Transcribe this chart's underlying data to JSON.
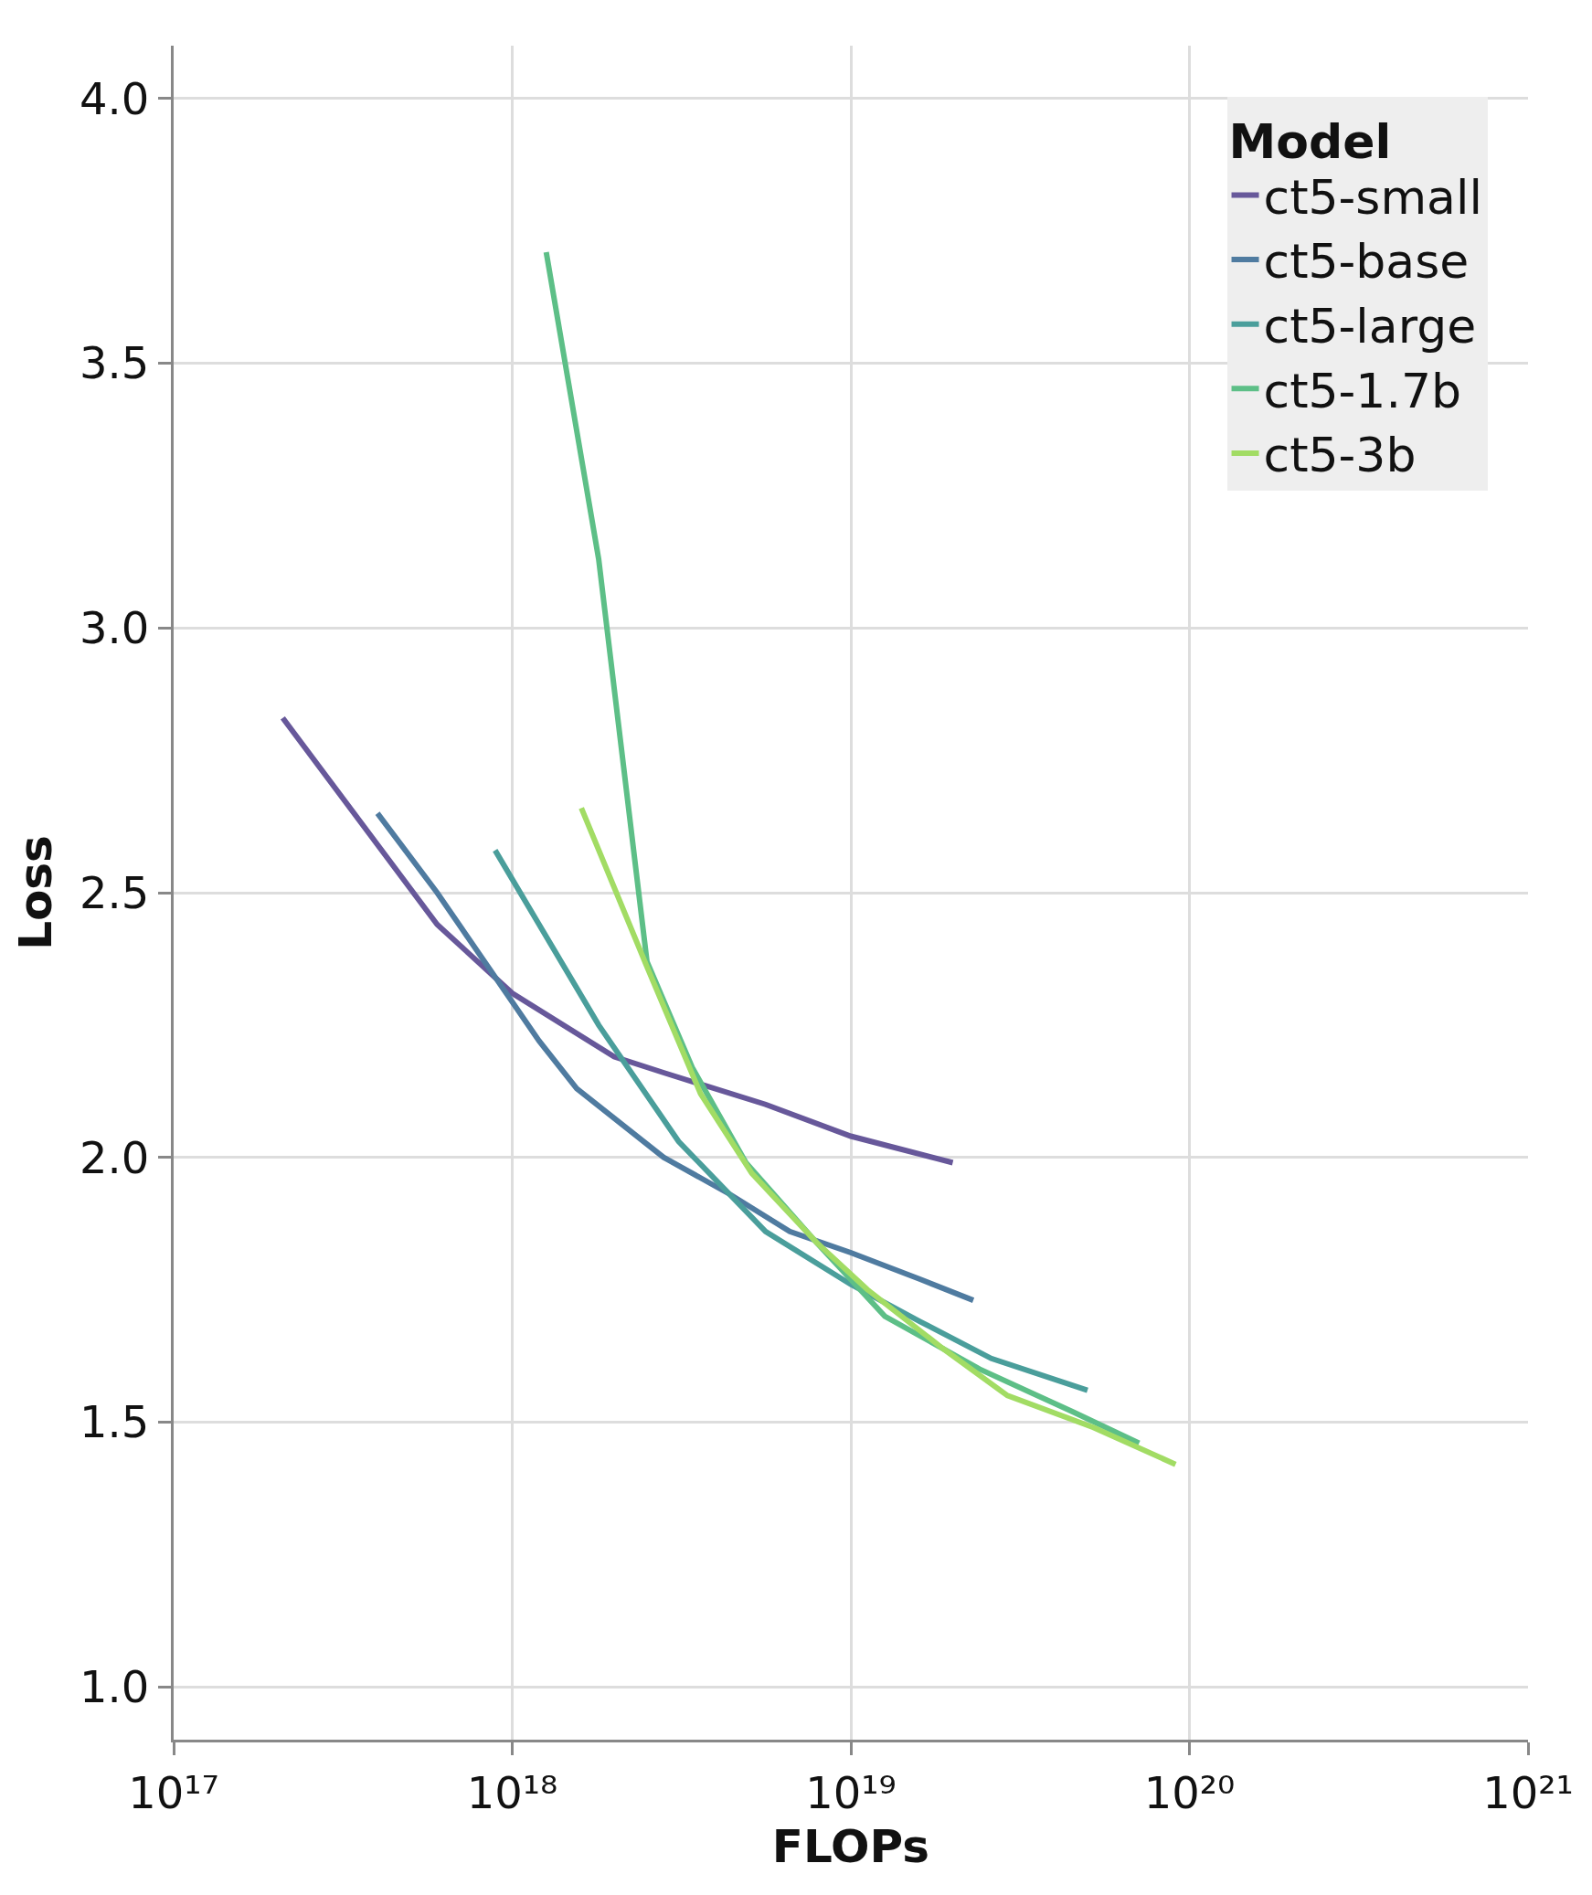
{
  "chart_data": {
    "type": "line",
    "xlabel": "FLOPs",
    "ylabel": "Loss",
    "legend_title": "Model",
    "legend": "top right",
    "grid": true,
    "log": "x",
    "marker": "none",
    "line_style": "solid",
    "xlim": [
      1e+17,
      1e+21
    ],
    "ylim": [
      0.9,
      4.1
    ],
    "xticks": [
      {
        "value": 1e+17,
        "label": "10¹⁷"
      },
      {
        "value": 1e+18,
        "label": "10¹⁸"
      },
      {
        "value": 1e+19,
        "label": "10¹⁹"
      },
      {
        "value": 1e+20,
        "label": "10²⁰"
      },
      {
        "value": 1e+21,
        "label": "10²¹"
      }
    ],
    "yticks": [
      {
        "value": 1,
        "label": "1.0"
      },
      {
        "value": 1.5,
        "label": "1.5"
      },
      {
        "value": 2,
        "label": "2.0"
      },
      {
        "value": 2.5,
        "label": "2.5"
      },
      {
        "value": 3,
        "label": "3.0"
      },
      {
        "value": 3.5,
        "label": "3.5"
      },
      {
        "value": 4,
        "label": "4.0"
      }
    ],
    "series": [
      {
        "name": "ct5-small",
        "color": "#67589a",
        "x": [
          2.1e+17,
          6e+17,
          1e+18,
          2e+18,
          2.8e+18,
          5.6e+18,
          1e+19,
          2e+19
        ],
        "values": [
          2.83,
          2.44,
          2.31,
          2.19,
          2.16,
          2.1,
          2.04,
          1.99
        ]
      },
      {
        "name": "ct5-base",
        "color": "#4f7ba0",
        "x": [
          4e+17,
          6e+17,
          1.2e+18,
          1.55e+18,
          2.8e+18,
          4.4e+18,
          6.6e+18,
          1e+19,
          1.6e+19,
          2.3e+19
        ],
        "values": [
          2.65,
          2.5,
          2.22,
          2.13,
          2.0,
          1.93,
          1.86,
          1.82,
          1.77,
          1.73
        ]
      },
      {
        "name": "ct5-large",
        "color": "#4a9e9b",
        "x": [
          8.9e+17,
          1.2e+18,
          1.8e+18,
          3.1e+18,
          5.6e+18,
          1e+19,
          1.6e+19,
          2.6e+19,
          5e+19
        ],
        "values": [
          2.58,
          2.44,
          2.25,
          2.03,
          1.86,
          1.76,
          1.69,
          1.62,
          1.56
        ]
      },
      {
        "name": "ct5-1.7b",
        "color": "#5dbf87",
        "x": [
          1.26e+18,
          1.8e+18,
          2.5e+18,
          3.4e+18,
          4.9e+18,
          7.9e+18,
          1.26e+19,
          2.4e+19,
          4.5e+19,
          7.1e+19
        ],
        "values": [
          3.71,
          3.13,
          2.37,
          2.17,
          1.99,
          1.84,
          1.7,
          1.6,
          1.52,
          1.46
        ]
      },
      {
        "name": "ct5-3b",
        "color": "#a2dc64",
        "x": [
          1.6e+18,
          2.5e+18,
          3.6e+18,
          5.1e+18,
          7.9e+18,
          1.12e+19,
          1.86e+19,
          2.9e+19,
          5.2e+19,
          9.1e+19
        ],
        "values": [
          2.66,
          2.36,
          2.12,
          1.97,
          1.84,
          1.75,
          1.64,
          1.55,
          1.49,
          1.42
        ]
      }
    ]
  }
}
